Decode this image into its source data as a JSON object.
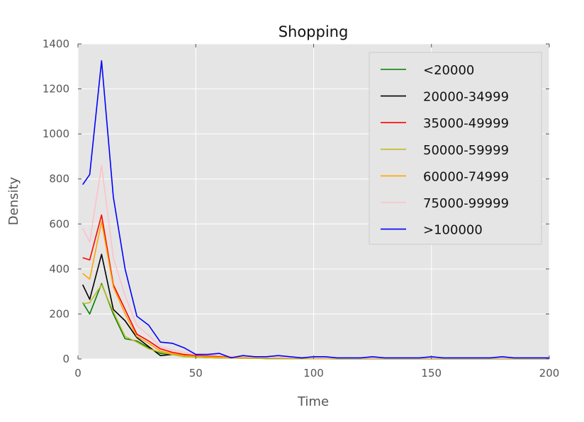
{
  "chart_data": {
    "type": "line",
    "title": "Shopping",
    "xlabel": "Time",
    "ylabel": "Density",
    "xlim": [
      0,
      200
    ],
    "ylim": [
      0,
      1400
    ],
    "xticks": [
      "0",
      "50",
      "100",
      "150",
      "200"
    ],
    "yticks": [
      "0",
      "200",
      "400",
      "600",
      "800",
      "1000",
      "1200",
      "1400"
    ],
    "grid": true,
    "legend_position": "top-right",
    "x": [
      2,
      5,
      10,
      15,
      20,
      25,
      30,
      35,
      40,
      45,
      50,
      55,
      60,
      65,
      70,
      75,
      80,
      85,
      90,
      95,
      100,
      105,
      110,
      115,
      120,
      125,
      130,
      135,
      140,
      145,
      150,
      155,
      160,
      165,
      170,
      175,
      180,
      185,
      190,
      195,
      200
    ],
    "series": [
      {
        "name": "<20000",
        "color": "#008000",
        "values": [
          250,
          200,
          335,
          200,
          90,
          80,
          50,
          25,
          20,
          12,
          8,
          6,
          5,
          4,
          3,
          3,
          2,
          2,
          2,
          2,
          2,
          2,
          1,
          1,
          1,
          1,
          1,
          1,
          1,
          1,
          1,
          1,
          1,
          1,
          1,
          1,
          1,
          1,
          1,
          1,
          1
        ]
      },
      {
        "name": "20000-34999",
        "color": "#000000",
        "values": [
          330,
          265,
          465,
          220,
          170,
          95,
          55,
          15,
          20,
          18,
          10,
          10,
          10,
          5,
          5,
          5,
          4,
          4,
          3,
          3,
          3,
          3,
          2,
          2,
          2,
          2,
          2,
          2,
          2,
          2,
          2,
          2,
          2,
          2,
          2,
          2,
          2,
          2,
          2,
          2,
          2
        ]
      },
      {
        "name": "35000-49999",
        "color": "#ff0000",
        "values": [
          450,
          440,
          640,
          330,
          220,
          110,
          80,
          45,
          30,
          20,
          15,
          15,
          10,
          10,
          8,
          8,
          6,
          6,
          5,
          5,
          4,
          4,
          4,
          4,
          3,
          3,
          3,
          3,
          3,
          3,
          3,
          3,
          3,
          3,
          3,
          3,
          3,
          3,
          3,
          3,
          3
        ]
      },
      {
        "name": "50000-59999",
        "color": "#bcbd22",
        "values": [
          245,
          250,
          330,
          210,
          100,
          75,
          45,
          30,
          20,
          10,
          8,
          6,
          5,
          4,
          4,
          3,
          3,
          3,
          3,
          3,
          2,
          2,
          2,
          2,
          2,
          2,
          2,
          2,
          2,
          2,
          2,
          2,
          2,
          2,
          2,
          2,
          2,
          2,
          2,
          2,
          2
        ]
      },
      {
        "name": "60000-74999",
        "color": "#ffa500",
        "values": [
          380,
          355,
          610,
          320,
          200,
          100,
          70,
          35,
          25,
          15,
          12,
          10,
          8,
          6,
          5,
          5,
          4,
          4,
          3,
          3,
          3,
          3,
          3,
          3,
          3,
          3,
          3,
          3,
          3,
          3,
          3,
          3,
          3,
          3,
          3,
          3,
          3,
          3,
          3,
          3,
          3
        ]
      },
      {
        "name": "75000-99999",
        "color": "#ffc0cb",
        "values": [
          580,
          520,
          860,
          450,
          280,
          150,
          105,
          55,
          40,
          30,
          20,
          18,
          15,
          12,
          10,
          9,
          8,
          7,
          6,
          6,
          5,
          5,
          5,
          4,
          4,
          4,
          4,
          4,
          4,
          4,
          4,
          4,
          4,
          4,
          4,
          4,
          4,
          4,
          4,
          4,
          4
        ]
      },
      {
        "name": ">100000",
        "color": "#0000ff",
        "values": [
          775,
          820,
          1325,
          720,
          400,
          190,
          150,
          75,
          70,
          50,
          20,
          20,
          25,
          5,
          15,
          10,
          10,
          15,
          10,
          5,
          10,
          10,
          5,
          5,
          5,
          10,
          5,
          5,
          5,
          5,
          10,
          5,
          5,
          5,
          5,
          5,
          10,
          5,
          5,
          5,
          5
        ]
      }
    ]
  }
}
